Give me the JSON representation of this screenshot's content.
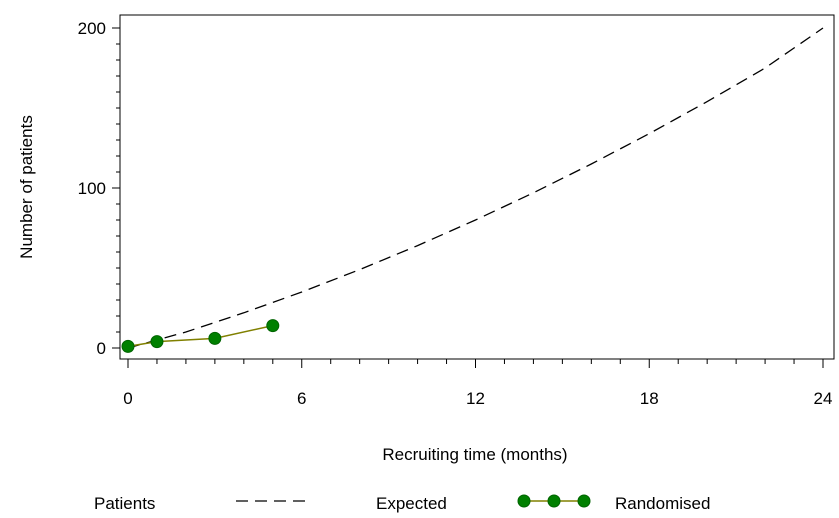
{
  "chart_data": {
    "type": "line",
    "xlabel": "Recruiting time (months)",
    "ylabel": "Number of patients",
    "xlim": [
      0,
      24
    ],
    "ylim": [
      0,
      200
    ],
    "x_ticks": [
      "0",
      "6",
      "12",
      "18",
      "24"
    ],
    "y_ticks": [
      "0",
      "100",
      "200"
    ],
    "grid": false,
    "series": [
      {
        "name": "Expected",
        "style": "dashed",
        "color": "#000000",
        "x": [
          0,
          2,
          4,
          6,
          8,
          10,
          12,
          14,
          16,
          18,
          20,
          22,
          24
        ],
        "y": [
          0,
          10,
          22,
          35,
          49,
          64,
          80,
          97,
          115,
          134,
          154,
          175,
          200
        ]
      },
      {
        "name": "Randomised",
        "style": "solid-markers",
        "color": "#808000",
        "marker_color": "#008000",
        "x": [
          0,
          1,
          3,
          5
        ],
        "y": [
          1,
          4,
          6,
          14
        ]
      }
    ],
    "legend": {
      "title": "Patients",
      "placement": "bottom",
      "entries": [
        "Expected",
        "Randomised"
      ]
    }
  }
}
